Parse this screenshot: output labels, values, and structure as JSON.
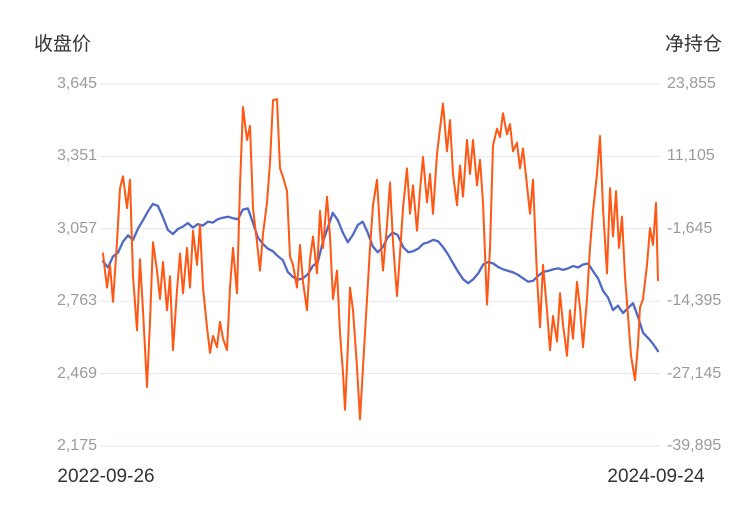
{
  "chart_data": {
    "type": "line",
    "title": "",
    "x_axis": {
      "start_label": "2022-09-26",
      "end_label": "2024-09-24"
    },
    "left_axis": {
      "title": "收盘价",
      "max": 3645,
      "min": 2175,
      "tick_labels": [
        "3,645",
        "3,351",
        "3,057",
        "2,763",
        "2,469",
        "2,175"
      ],
      "tick_values": [
        3645,
        3351,
        3057,
        2763,
        2469,
        2175
      ]
    },
    "right_axis": {
      "title": "净持仓",
      "max": 23855,
      "min": -39895,
      "tick_labels": [
        "23,855",
        "11,105",
        "-1,645",
        "-14,395",
        "-27,145",
        "-39,895"
      ],
      "tick_values": [
        23855,
        11105,
        -1645,
        -14395,
        -27145,
        -39895
      ]
    },
    "grid": true,
    "legend": false,
    "colors": {
      "grid_line": "#e2e7f0",
      "tick_text": "#9b9b9b",
      "title_text": "#333333",
      "close_price_line": "#4f69c6",
      "net_position_line": "#ff5714"
    },
    "series": [
      {
        "name": "收盘价",
        "axis": "left",
        "color": "#4f69c6",
        "points": [
          [
            0,
            2925
          ],
          [
            0.9,
            2900
          ],
          [
            1.8,
            2945
          ],
          [
            2.7,
            2960
          ],
          [
            3.6,
            3005
          ],
          [
            4.5,
            3030
          ],
          [
            5.4,
            3012
          ],
          [
            6.3,
            3058
          ],
          [
            7.2,
            3092
          ],
          [
            8.1,
            3128
          ],
          [
            9,
            3158
          ],
          [
            9.9,
            3150
          ],
          [
            10.8,
            3105
          ],
          [
            11.7,
            3052
          ],
          [
            12.6,
            3036
          ],
          [
            13.5,
            3056
          ],
          [
            14.4,
            3066
          ],
          [
            15.3,
            3080
          ],
          [
            16.2,
            3062
          ],
          [
            17.1,
            3076
          ],
          [
            18,
            3070
          ],
          [
            18.9,
            3086
          ],
          [
            19.8,
            3082
          ],
          [
            20.7,
            3096
          ],
          [
            21.6,
            3102
          ],
          [
            22.5,
            3106
          ],
          [
            23.4,
            3100
          ],
          [
            24.3,
            3096
          ],
          [
            25.2,
            3135
          ],
          [
            26.1,
            3140
          ],
          [
            27,
            3082
          ],
          [
            27.9,
            3022
          ],
          [
            28.8,
            2996
          ],
          [
            29.7,
            2976
          ],
          [
            30.6,
            2966
          ],
          [
            31.5,
            2946
          ],
          [
            32.4,
            2930
          ],
          [
            33.3,
            2882
          ],
          [
            34.2,
            2862
          ],
          [
            35.1,
            2850
          ],
          [
            36,
            2856
          ],
          [
            36.9,
            2872
          ],
          [
            37.8,
            2906
          ],
          [
            38.7,
            2922
          ],
          [
            39.6,
            3002
          ],
          [
            40.5,
            3062
          ],
          [
            41.4,
            3122
          ],
          [
            42.3,
            3092
          ],
          [
            43.2,
            3042
          ],
          [
            44.1,
            3002
          ],
          [
            45,
            3032
          ],
          [
            45.9,
            3072
          ],
          [
            46.8,
            3086
          ],
          [
            47.7,
            3042
          ],
          [
            48.6,
            2986
          ],
          [
            49.5,
            2962
          ],
          [
            50.4,
            2982
          ],
          [
            51.3,
            3022
          ],
          [
            52.2,
            3042
          ],
          [
            53.1,
            3032
          ],
          [
            54.1,
            2982
          ],
          [
            55,
            2962
          ],
          [
            55.9,
            2966
          ],
          [
            56.8,
            2976
          ],
          [
            57.7,
            2996
          ],
          [
            58.6,
            3002
          ],
          [
            59.5,
            3012
          ],
          [
            60.4,
            3006
          ],
          [
            61.3,
            2982
          ],
          [
            62.2,
            2952
          ],
          [
            63.1,
            2916
          ],
          [
            64,
            2882
          ],
          [
            64.9,
            2852
          ],
          [
            65.8,
            2836
          ],
          [
            66.7,
            2852
          ],
          [
            67.6,
            2876
          ],
          [
            68.5,
            2912
          ],
          [
            69.4,
            2922
          ],
          [
            70.3,
            2916
          ],
          [
            71.2,
            2902
          ],
          [
            72.1,
            2892
          ],
          [
            73,
            2886
          ],
          [
            73.9,
            2880
          ],
          [
            74.8,
            2870
          ],
          [
            75.7,
            2856
          ],
          [
            76.6,
            2842
          ],
          [
            77.5,
            2846
          ],
          [
            78.4,
            2866
          ],
          [
            79.3,
            2882
          ],
          [
            80.2,
            2886
          ],
          [
            81.1,
            2892
          ],
          [
            82,
            2896
          ],
          [
            82.9,
            2890
          ],
          [
            83.8,
            2896
          ],
          [
            84.7,
            2906
          ],
          [
            85.6,
            2900
          ],
          [
            86.5,
            2912
          ],
          [
            87.4,
            2916
          ],
          [
            88.3,
            2885
          ],
          [
            89.2,
            2855
          ],
          [
            90.1,
            2805
          ],
          [
            91,
            2778
          ],
          [
            91.9,
            2727
          ],
          [
            92.8,
            2745
          ],
          [
            93.7,
            2715
          ],
          [
            94.6,
            2735
          ],
          [
            95.5,
            2755
          ],
          [
            96.4,
            2700
          ],
          [
            97.3,
            2635
          ],
          [
            98.2,
            2614
          ],
          [
            99.1,
            2590
          ],
          [
            100,
            2560
          ]
        ]
      },
      {
        "name": "净持仓",
        "axis": "right",
        "color": "#ff5714",
        "points": [
          [
            0,
            -6000
          ],
          [
            0.72,
            -12000
          ],
          [
            1.26,
            -8000
          ],
          [
            1.8,
            -14500
          ],
          [
            2.52,
            -4000
          ],
          [
            3.06,
            5500
          ],
          [
            3.6,
            7600
          ],
          [
            4.32,
            2000
          ],
          [
            4.86,
            7000
          ],
          [
            5.41,
            -10000
          ],
          [
            6.13,
            -19500
          ],
          [
            6.67,
            -7000
          ],
          [
            7.21,
            -16000
          ],
          [
            7.93,
            -29500
          ],
          [
            8.47,
            -18000
          ],
          [
            9.01,
            -4000
          ],
          [
            9.73,
            -9000
          ],
          [
            10.27,
            -14000
          ],
          [
            10.81,
            -7500
          ],
          [
            11.53,
            -16000
          ],
          [
            12.07,
            -10000
          ],
          [
            12.61,
            -23000
          ],
          [
            13.33,
            -12500
          ],
          [
            13.87,
            -6000
          ],
          [
            14.41,
            -13000
          ],
          [
            15.14,
            -5000
          ],
          [
            15.68,
            -12000
          ],
          [
            16.22,
            -2000
          ],
          [
            16.94,
            -8000
          ],
          [
            17.48,
            -1000
          ],
          [
            18.02,
            -12000
          ],
          [
            18.74,
            -19000
          ],
          [
            19.28,
            -23500
          ],
          [
            19.82,
            -20500
          ],
          [
            20.54,
            -22500
          ],
          [
            21.08,
            -18000
          ],
          [
            21.62,
            -21000
          ],
          [
            22.34,
            -23000
          ],
          [
            22.88,
            -12000
          ],
          [
            23.42,
            -5000
          ],
          [
            24.14,
            -13000
          ],
          [
            24.68,
            6000
          ],
          [
            25.23,
            19800
          ],
          [
            25.95,
            14000
          ],
          [
            26.49,
            16500
          ],
          [
            27.03,
            2000
          ],
          [
            27.75,
            -4000
          ],
          [
            28.29,
            -9000
          ],
          [
            28.83,
            -2500
          ],
          [
            29.55,
            3000
          ],
          [
            30.09,
            10000
          ],
          [
            30.63,
            21000
          ],
          [
            31.35,
            21200
          ],
          [
            31.89,
            9000
          ],
          [
            32.43,
            7500
          ],
          [
            33.15,
            5000
          ],
          [
            33.69,
            -6500
          ],
          [
            34.23,
            -8000
          ],
          [
            34.95,
            -12000
          ],
          [
            35.5,
            -4500
          ],
          [
            36.04,
            -11000
          ],
          [
            36.76,
            -16000
          ],
          [
            37.3,
            -7000
          ],
          [
            37.84,
            -3000
          ],
          [
            38.56,
            -9500
          ],
          [
            39.1,
            1500
          ],
          [
            39.64,
            -5000
          ],
          [
            40.36,
            4000
          ],
          [
            40.9,
            -3000
          ],
          [
            41.44,
            -14000
          ],
          [
            42.16,
            -9000
          ],
          [
            42.7,
            -20000
          ],
          [
            43.24,
            -27000
          ],
          [
            43.6,
            -33500
          ],
          [
            44.14,
            -22000
          ],
          [
            44.5,
            -12000
          ],
          [
            45.05,
            -16000
          ],
          [
            45.77,
            -26000
          ],
          [
            46.31,
            -35200
          ],
          [
            46.85,
            -26000
          ],
          [
            47.57,
            -14000
          ],
          [
            48.11,
            -5000
          ],
          [
            48.65,
            2500
          ],
          [
            49.37,
            7000
          ],
          [
            49.91,
            -2000
          ],
          [
            50.45,
            -9000
          ],
          [
            51.17,
            -1000
          ],
          [
            51.71,
            6500
          ],
          [
            52.25,
            -4000
          ],
          [
            52.97,
            -13500
          ],
          [
            53.51,
            -6000
          ],
          [
            54.05,
            2000
          ],
          [
            54.77,
            9000
          ],
          [
            55.32,
            1000
          ],
          [
            55.86,
            6000
          ],
          [
            56.58,
            -2000
          ],
          [
            57.12,
            5000
          ],
          [
            57.66,
            11000
          ],
          [
            58.38,
            3000
          ],
          [
            58.92,
            8000
          ],
          [
            59.46,
            1000
          ],
          [
            60.18,
            11500
          ],
          [
            60.72,
            16000
          ],
          [
            61.26,
            20400
          ],
          [
            61.98,
            12000
          ],
          [
            62.52,
            17500
          ],
          [
            63.06,
            8000
          ],
          [
            63.78,
            2500
          ],
          [
            64.32,
            9500
          ],
          [
            64.86,
            4000
          ],
          [
            65.59,
            14000
          ],
          [
            66.13,
            8000
          ],
          [
            66.67,
            14000
          ],
          [
            67.39,
            6000
          ],
          [
            67.93,
            10500
          ],
          [
            68.47,
            3000
          ],
          [
            69.19,
            -15000
          ],
          [
            69.73,
            -5000
          ],
          [
            70.27,
            13000
          ],
          [
            70.99,
            16000
          ],
          [
            71.53,
            14500
          ],
          [
            72.07,
            18700
          ],
          [
            72.79,
            15000
          ],
          [
            73.33,
            16800
          ],
          [
            73.87,
            12000
          ],
          [
            74.59,
            13500
          ],
          [
            75.14,
            9000
          ],
          [
            75.68,
            12500
          ],
          [
            76.4,
            6000
          ],
          [
            76.94,
            1000
          ],
          [
            77.48,
            7000
          ],
          [
            78.2,
            -10000
          ],
          [
            78.74,
            -19000
          ],
          [
            79.28,
            -8000
          ],
          [
            80,
            -16000
          ],
          [
            80.54,
            -23000
          ],
          [
            81.08,
            -17000
          ],
          [
            81.8,
            -21500
          ],
          [
            82.34,
            -13000
          ],
          [
            82.88,
            -18500
          ],
          [
            83.6,
            -24000
          ],
          [
            84.14,
            -16000
          ],
          [
            84.68,
            -21000
          ],
          [
            85.41,
            -11000
          ],
          [
            85.95,
            -15500
          ],
          [
            86.49,
            -22500
          ],
          [
            87.21,
            -14000
          ],
          [
            87.75,
            -5000
          ],
          [
            88.29,
            1500
          ],
          [
            89.01,
            8000
          ],
          [
            89.55,
            14700
          ],
          [
            90.09,
            2000
          ],
          [
            90.81,
            -9500
          ],
          [
            91.35,
            5500
          ],
          [
            91.89,
            -3000
          ],
          [
            92.43,
            5000
          ],
          [
            92.97,
            -5000
          ],
          [
            93.51,
            500
          ],
          [
            94.05,
            -10000
          ],
          [
            94.59,
            -17000
          ],
          [
            95.13,
            -24000
          ],
          [
            95.86,
            -28300
          ],
          [
            96.4,
            -22000
          ],
          [
            96.76,
            -15500
          ],
          [
            97.3,
            -14000
          ],
          [
            98.02,
            -8000
          ],
          [
            98.56,
            -1500
          ],
          [
            99.1,
            -4500
          ],
          [
            99.64,
            2900
          ],
          [
            100,
            -10700
          ]
        ]
      }
    ]
  }
}
